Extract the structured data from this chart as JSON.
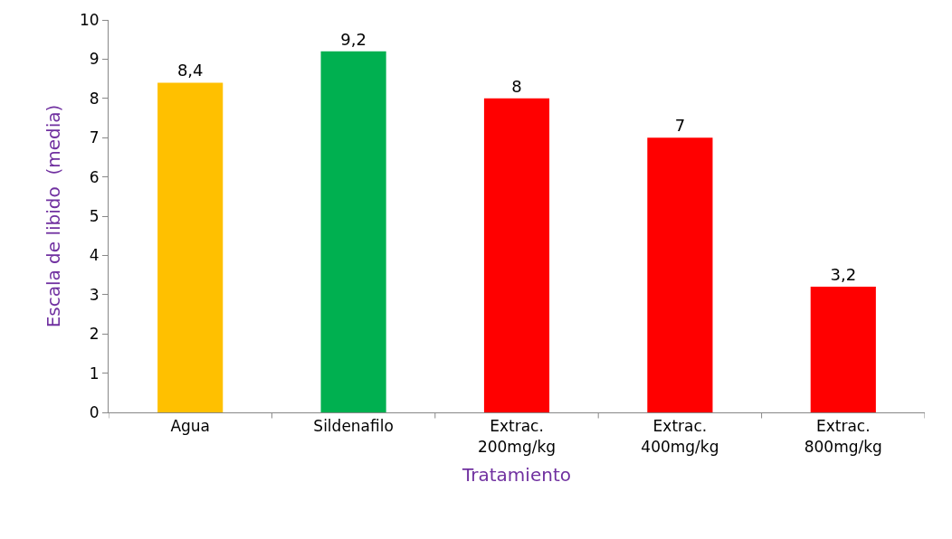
{
  "chart_data": {
    "type": "bar",
    "xlabel": "Tratamiento",
    "ylabel": "Escala de libido  (media)",
    "categories": [
      "Agua",
      "Sildenafilo",
      "Extrac.\n200mg/kg",
      "Extrac.\n400mg/kg",
      "Extrac.\n800mg/kg"
    ],
    "values": [
      8.4,
      9.2,
      8,
      7,
      3.2
    ],
    "colors": [
      "#ffc000",
      "#00b050",
      "#ff0000",
      "#ff0000",
      "#ff0000"
    ],
    "value_labels": [
      "8,4",
      "9,2",
      "8",
      "7",
      "3,2"
    ],
    "ylim": [
      0,
      10
    ],
    "yticks": [
      0,
      1,
      2,
      3,
      4,
      5,
      6,
      7,
      8,
      9,
      10
    ]
  }
}
